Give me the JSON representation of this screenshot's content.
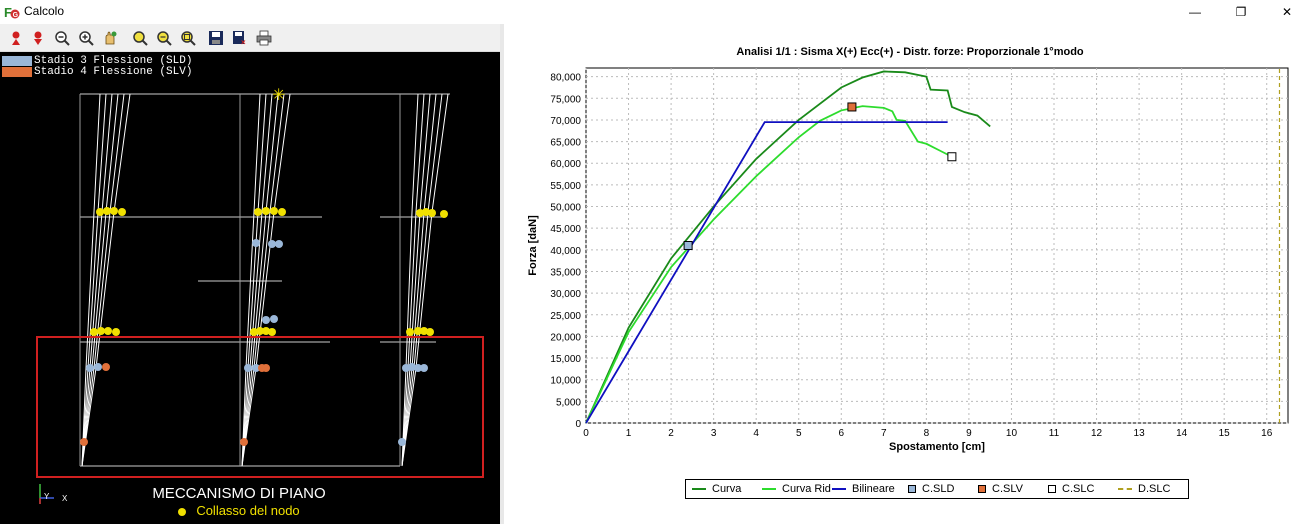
{
  "window": {
    "title": "Calcolo",
    "minimize_glyph": "—",
    "maximize_glyph": "❐",
    "close_glyph": "✕"
  },
  "toolbar": {
    "buttons": [
      {
        "name": "node-up-icon"
      },
      {
        "name": "node-down-icon"
      },
      {
        "name": "zoom-out-icon"
      },
      {
        "name": "zoom-in-icon"
      },
      {
        "name": "pan-icon"
      },
      {
        "name": "zoom-window-icon"
      },
      {
        "name": "zoom-reset-icon"
      },
      {
        "name": "zoom-all-icon"
      },
      {
        "name": "save-icon"
      },
      {
        "name": "export-icon"
      },
      {
        "name": "print-icon"
      }
    ]
  },
  "viewport": {
    "legend": [
      {
        "label": "Stadio 3 Flessione (SLD)",
        "color": "#9ab7d8"
      },
      {
        "label": "Stadio 4 Flessione (SLV)",
        "color": "#e0703a"
      }
    ],
    "mechanism_title": "MECCANISMO DI PIANO",
    "mechanism_sub": "Collasso del nodo",
    "axis_x": "X",
    "axis_y": "Y",
    "highlight_color": "#d02020"
  },
  "chart": {
    "title": "Analisi 1/1 : Sisma X(+) Ecc(+) - Distr. forze: Proporzionale 1°modo"
  },
  "chart_data": {
    "type": "line",
    "title": "Analisi 1/1 : Sisma X(+) Ecc(+) - Distr. forze: Proporzionale 1°modo",
    "xlabel": "Spostamento [cm]",
    "ylabel": "Forza [daN]",
    "xlim": [
      0,
      16.5
    ],
    "ylim": [
      0,
      82000
    ],
    "xticks": [
      "0",
      "1",
      "2",
      "3",
      "4",
      "5",
      "6",
      "7",
      "8",
      "9",
      "10",
      "11",
      "12",
      "13",
      "14",
      "15",
      "16"
    ],
    "yticks": [
      "0",
      "5,000",
      "10,000",
      "15,000",
      "20,000",
      "25,000",
      "30,000",
      "35,000",
      "40,000",
      "45,000",
      "50,000",
      "55,000",
      "60,000",
      "65,000",
      "70,000",
      "75,000",
      "80,000"
    ],
    "grid": true,
    "legend_position": "bottom",
    "series": [
      {
        "name": "Curva",
        "color": "#1a8a1a",
        "x": [
          0,
          1,
          2,
          3,
          4,
          5,
          6,
          6.5,
          7,
          7.5,
          8,
          8.1,
          8.5,
          8.6,
          8.9,
          9.2,
          9.5
        ],
        "y": [
          0,
          22000,
          38000,
          50000,
          61000,
          70000,
          77500,
          79800,
          81200,
          81000,
          80000,
          77000,
          76800,
          73000,
          71800,
          71000,
          68500
        ]
      },
      {
        "name": "Curva Rid",
        "color": "#2ddc2d",
        "x": [
          0,
          1,
          2,
          3,
          4,
          5,
          5.5,
          6,
          6.5,
          7,
          7.2,
          7.3,
          7.5,
          7.8,
          8,
          8.3,
          8.6
        ],
        "y": [
          0,
          21000,
          36000,
          47000,
          57000,
          66000,
          69800,
          72200,
          73200,
          72800,
          72000,
          70000,
          69800,
          65000,
          64500,
          63000,
          61500
        ]
      },
      {
        "name": "Bilineare",
        "color": "#1010c0",
        "x": [
          0,
          4.2,
          8.5
        ],
        "y": [
          0,
          69500,
          69500
        ]
      },
      {
        "name": "C.SLD",
        "color": "#9ab7d8",
        "marker": "square",
        "x": [
          2.4
        ],
        "y": [
          41000
        ]
      },
      {
        "name": "C.SLV",
        "color": "#e0703a",
        "marker": "square",
        "x": [
          6.25
        ],
        "y": [
          73000
        ]
      },
      {
        "name": "C.SLC",
        "color": "#ffffff",
        "marker": "square",
        "x": [
          8.6
        ],
        "y": [
          61500
        ]
      },
      {
        "name": "D.SLC",
        "color": "#b0a020",
        "dashed": true,
        "x": [
          16.3,
          16.3
        ],
        "y": [
          0,
          82000
        ]
      }
    ]
  }
}
